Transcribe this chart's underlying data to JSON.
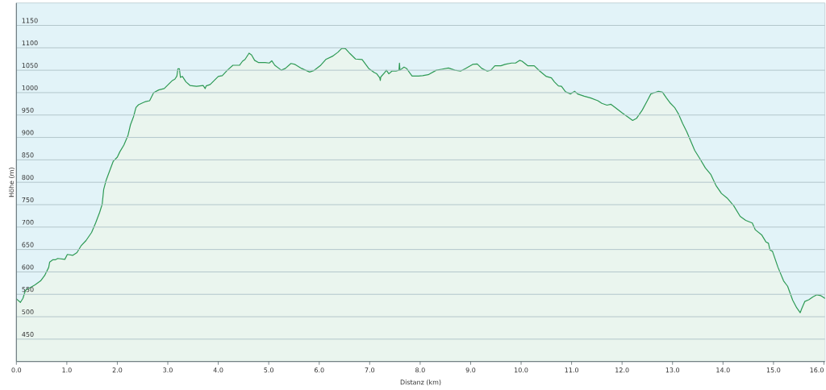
{
  "chart_data": {
    "type": "area",
    "xlabel": "Distanz (km)",
    "ylabel": "Höhe (m)",
    "color": "#2e9a55",
    "x": [
      0,
      0.08,
      0.13,
      0.18,
      0.26,
      0.37,
      0.48,
      0.56,
      0.64,
      0.66,
      0.72,
      0.77,
      0.82,
      0.96,
      1.01,
      1.12,
      1.2,
      1.28,
      1.38,
      1.49,
      1.57,
      1.65,
      1.7,
      1.73,
      1.78,
      1.86,
      1.92,
      2.0,
      2.05,
      2.13,
      2.21,
      2.26,
      2.32,
      2.37,
      2.42,
      2.48,
      2.56,
      2.64,
      2.72,
      2.82,
      2.93,
      3.01,
      3.09,
      3.14,
      3.18,
      3.2,
      3.23,
      3.25,
      3.29,
      3.36,
      3.44,
      3.57,
      3.7,
      3.74,
      3.76,
      3.84,
      3.92,
      4.0,
      4.08,
      4.18,
      4.29,
      4.42,
      4.48,
      4.53,
      4.61,
      4.66,
      4.72,
      4.8,
      4.93,
      5.01,
      5.06,
      5.12,
      5.25,
      5.33,
      5.44,
      5.52,
      5.65,
      5.81,
      5.89,
      6.02,
      6.13,
      6.26,
      6.37,
      6.45,
      6.52,
      6.61,
      6.72,
      6.85,
      6.98,
      7.09,
      7.14,
      7.2,
      7.21,
      7.22,
      7.3,
      7.33,
      7.38,
      7.44,
      7.52,
      7.58,
      7.59,
      7.6,
      7.68,
      7.73,
      7.84,
      7.97,
      8.05,
      8.16,
      8.32,
      8.42,
      8.56,
      8.69,
      8.8,
      8.9,
      9.04,
      9.13,
      9.22,
      9.33,
      9.4,
      9.48,
      9.6,
      9.68,
      9.81,
      9.89,
      9.97,
      10.02,
      10.13,
      10.26,
      10.37,
      10.5,
      10.6,
      10.66,
      10.74,
      10.8,
      10.88,
      10.98,
      11.06,
      11.12,
      11.25,
      11.38,
      11.52,
      11.6,
      11.7,
      11.78,
      11.86,
      12.0,
      12.1,
      12.21,
      12.29,
      12.4,
      12.5,
      12.57,
      12.64,
      12.72,
      12.8,
      12.88,
      12.96,
      13.04,
      13.12,
      13.2,
      13.28,
      13.36,
      13.44,
      13.54,
      13.65,
      13.76,
      13.86,
      13.97,
      14.08,
      14.21,
      14.34,
      14.45,
      14.58,
      14.64,
      14.77,
      14.85,
      14.9,
      14.93,
      14.98,
      15.09,
      15.2,
      15.28,
      15.38,
      15.46,
      15.53,
      15.56,
      15.62,
      15.7,
      15.78,
      15.86,
      15.94,
      16.02
    ],
    "values": [
      540,
      532,
      541,
      559,
      564,
      571,
      580,
      592,
      610,
      622,
      627,
      627,
      630,
      628,
      639,
      637,
      643,
      658,
      670,
      688,
      709,
      733,
      751,
      784,
      805,
      829,
      847,
      856,
      868,
      883,
      904,
      928,
      946,
      967,
      973,
      976,
      980,
      982,
      1000,
      1006,
      1009,
      1018,
      1027,
      1030,
      1037,
      1053,
      1053,
      1034,
      1036,
      1024,
      1016,
      1014,
      1016,
      1009,
      1015,
      1018,
      1027,
      1036,
      1038,
      1050,
      1061,
      1061,
      1070,
      1074,
      1088,
      1084,
      1072,
      1067,
      1067,
      1066,
      1071,
      1061,
      1050,
      1054,
      1065,
      1063,
      1054,
      1046,
      1049,
      1060,
      1074,
      1081,
      1090,
      1099,
      1098,
      1087,
      1075,
      1074,
      1054,
      1045,
      1042,
      1033,
      1027,
      1035,
      1045,
      1050,
      1042,
      1048,
      1048,
      1050,
      1066,
      1050,
      1057,
      1054,
      1037,
      1037,
      1038,
      1040,
      1050,
      1052,
      1055,
      1050,
      1048,
      1054,
      1063,
      1064,
      1054,
      1048,
      1050,
      1060,
      1060,
      1063,
      1066,
      1066,
      1072,
      1070,
      1060,
      1060,
      1048,
      1036,
      1033,
      1024,
      1015,
      1014,
      1002,
      997,
      1003,
      997,
      992,
      988,
      982,
      976,
      972,
      974,
      967,
      955,
      947,
      938,
      943,
      961,
      982,
      997,
      1000,
      1003,
      1001,
      988,
      976,
      967,
      952,
      931,
      913,
      892,
      871,
      853,
      832,
      817,
      793,
      775,
      765,
      748,
      724,
      715,
      709,
      694,
      682,
      667,
      664,
      649,
      646,
      610,
      580,
      568,
      537,
      520,
      509,
      518,
      534,
      538,
      544,
      549,
      547,
      541
    ],
    "xlim": [
      0,
      16.02
    ],
    "ylim": [
      400,
      1200
    ],
    "xticks": [
      {
        "value": 0,
        "label": "0.0"
      },
      {
        "value": 1,
        "label": "1.0"
      },
      {
        "value": 2,
        "label": "2.0"
      },
      {
        "value": 3,
        "label": "3.0"
      },
      {
        "value": 4,
        "label": "4.0"
      },
      {
        "value": 5,
        "label": "5.0"
      },
      {
        "value": 6,
        "label": "6.0"
      },
      {
        "value": 7,
        "label": "7.0"
      },
      {
        "value": 8,
        "label": "8.0"
      },
      {
        "value": 9,
        "label": "9.0"
      },
      {
        "value": 10,
        "label": "10.0"
      },
      {
        "value": 11,
        "label": "11.0"
      },
      {
        "value": 12,
        "label": "12.0"
      },
      {
        "value": 13,
        "label": "13.0"
      },
      {
        "value": 14,
        "label": "14.0"
      },
      {
        "value": 15,
        "label": "15.0"
      },
      {
        "value": 16,
        "label": "16.0"
      }
    ],
    "yticks": [
      450,
      500,
      550,
      600,
      650,
      700,
      750,
      800,
      850,
      900,
      950,
      1000,
      1050,
      1100,
      1150
    ],
    "grid": "y"
  }
}
